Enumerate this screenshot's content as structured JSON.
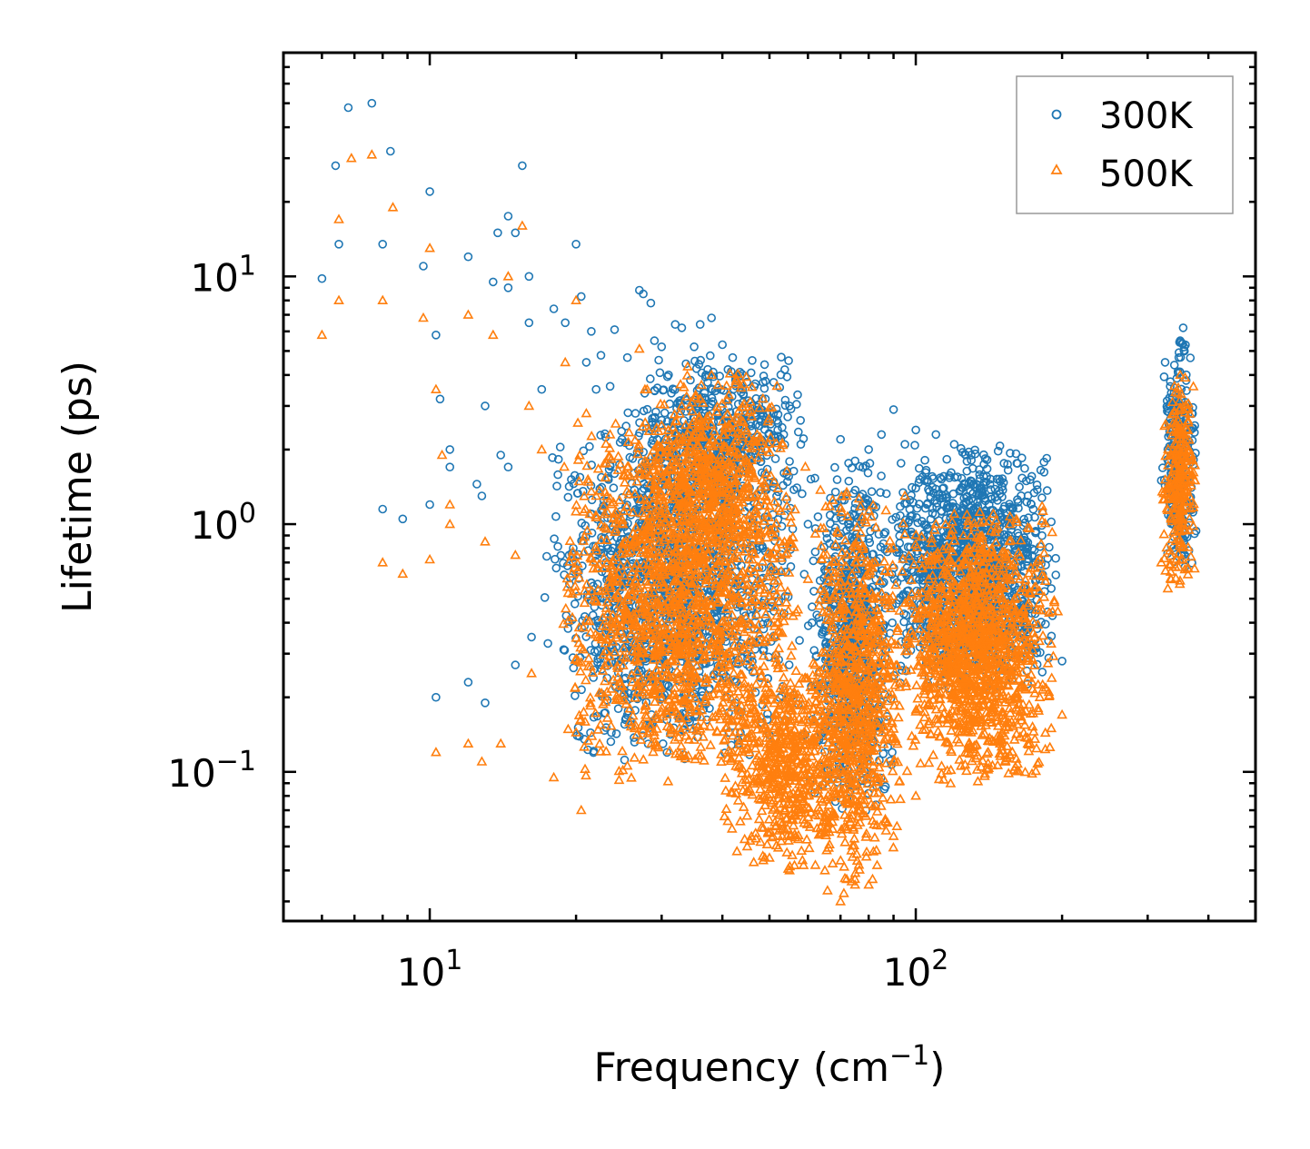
{
  "chart_data": {
    "type": "scatter",
    "title": "",
    "xlabel": "Frequency (cm",
    "xlabel_sup": "−1",
    "xlabel_end": ")",
    "ylabel": "Lifetime (ps)",
    "xscale": "log",
    "yscale": "log",
    "xlim": [
      5,
      500
    ],
    "ylim": [
      0.025,
      80
    ],
    "xticks": [
      {
        "value": 10,
        "base": "10",
        "exp": "1"
      },
      {
        "value": 100,
        "base": "10",
        "exp": "2"
      }
    ],
    "yticks": [
      {
        "value": 0.1,
        "base": "10",
        "exp": "−1"
      },
      {
        "value": 1,
        "base": "10",
        "exp": "0"
      },
      {
        "value": 10,
        "base": "10",
        "exp": "1"
      }
    ],
    "grid": false,
    "legend_position": "top-right",
    "series": [
      {
        "name": "300K",
        "marker": "circle",
        "color": "#1f77b4",
        "points": [
          [
            6.0,
            9.8
          ],
          [
            6.4,
            28
          ],
          [
            6.5,
            13.5
          ],
          [
            6.8,
            48
          ],
          [
            7.6,
            50
          ],
          [
            8.0,
            13.5
          ],
          [
            8.3,
            32
          ],
          [
            8.0,
            1.15
          ],
          [
            8.8,
            1.05
          ],
          [
            9.7,
            11
          ],
          [
            10.0,
            22
          ],
          [
            10.0,
            1.2
          ],
          [
            10.3,
            5.8
          ],
          [
            10.5,
            3.2
          ],
          [
            10.3,
            0.2
          ],
          [
            11.0,
            2.0
          ],
          [
            11.0,
            1.7
          ],
          [
            12.0,
            12
          ],
          [
            12.0,
            0.23
          ],
          [
            12.5,
            1.45
          ],
          [
            12.8,
            1.3
          ],
          [
            13.0,
            0.19
          ],
          [
            13.0,
            3.0
          ],
          [
            13.5,
            9.5
          ],
          [
            13.8,
            15
          ],
          [
            14.0,
            1.9
          ],
          [
            14.5,
            17.5
          ],
          [
            14.5,
            9.0
          ],
          [
            14.5,
            1.7
          ],
          [
            15.0,
            15
          ],
          [
            15.0,
            0.27
          ],
          [
            15.5,
            28
          ],
          [
            16.0,
            10
          ],
          [
            16.0,
            6.5
          ],
          [
            16.2,
            0.35
          ],
          [
            17.0,
            3.5
          ],
          [
            17.5,
            0.33
          ],
          [
            18.0,
            7.4
          ],
          [
            19.0,
            6.5
          ],
          [
            20.0,
            13.5
          ],
          [
            20.5,
            8.3
          ],
          [
            21.0,
            4.5
          ],
          [
            21.5,
            6.0
          ],
          [
            22.0,
            3.5
          ],
          [
            22.5,
            4.8
          ],
          [
            23.5,
            3.6
          ],
          [
            24.0,
            6.1
          ],
          [
            25.5,
            4.7
          ],
          [
            26.5,
            2.8
          ],
          [
            27.0,
            8.8
          ],
          [
            27.5,
            8.5
          ],
          [
            28.5,
            7.8
          ],
          [
            29.0,
            5.5
          ],
          [
            30.0,
            5.2
          ],
          [
            31.0,
            4.0
          ],
          [
            32.0,
            6.4
          ],
          [
            33.0,
            6.2
          ],
          [
            35.0,
            5.2
          ],
          [
            36.0,
            6.4
          ],
          [
            37.0,
            4.0
          ],
          [
            38.0,
            6.8
          ],
          [
            40.0,
            5.3
          ],
          [
            42.0,
            4.7
          ],
          [
            44.0,
            3.5
          ],
          [
            46.0,
            3.0
          ],
          [
            48.0,
            2.6
          ],
          [
            52.0,
            2.4
          ],
          [
            55.0,
            3.0
          ],
          [
            58.0,
            2.1
          ],
          [
            60.0,
            1.0
          ],
          [
            65.0,
            0.5
          ],
          [
            70.0,
            2.2
          ],
          [
            75.0,
            1.8
          ],
          [
            80.0,
            2.0
          ],
          [
            85.0,
            2.3
          ],
          [
            90.0,
            2.9
          ],
          [
            95.0,
            2.1
          ],
          [
            100.0,
            2.4
          ],
          [
            110.0,
            2.3
          ],
          [
            120.0,
            2.1
          ],
          [
            130.0,
            1.9
          ],
          [
            140.0,
            1.0
          ],
          [
            150.0,
            0.7
          ],
          [
            160.0,
            0.8
          ],
          [
            170.0,
            0.75
          ],
          [
            180.0,
            0.6
          ],
          [
            190.0,
            0.55
          ],
          [
            200.0,
            0.28
          ],
          [
            320.0,
            1.5
          ],
          [
            330.0,
            2.0
          ],
          [
            340.0,
            3.0
          ],
          [
            350.0,
            5.5
          ],
          [
            355.0,
            6.2
          ],
          [
            360.0,
            3.8
          ],
          [
            370.0,
            2.8
          ],
          [
            375.0,
            2.5
          ]
        ],
        "clusters": [
          {
            "x": [
              17,
              60
            ],
            "y": [
              0.1,
              3.0
            ],
            "n": 1400
          },
          {
            "x": [
              26,
              60
            ],
            "y": [
              1.0,
              5.0
            ],
            "n": 500
          },
          {
            "x": [
              60,
              90
            ],
            "y": [
              0.06,
              2.0
            ],
            "n": 700
          },
          {
            "x": [
              85,
              200
            ],
            "y": [
              0.2,
              2.2
            ],
            "n": 1300
          },
          {
            "x": [
              320,
              380
            ],
            "y": [
              0.6,
              6.0
            ],
            "n": 260
          }
        ]
      },
      {
        "name": "500K",
        "marker": "triangle",
        "color": "#ff7f0e",
        "points": [
          [
            6.0,
            5.8
          ],
          [
            6.5,
            17
          ],
          [
            6.5,
            8.0
          ],
          [
            6.9,
            30
          ],
          [
            7.6,
            31
          ],
          [
            8.0,
            8.0
          ],
          [
            8.0,
            0.7
          ],
          [
            8.4,
            19
          ],
          [
            8.8,
            0.63
          ],
          [
            9.7,
            6.8
          ],
          [
            10.0,
            13
          ],
          [
            10.0,
            0.72
          ],
          [
            10.3,
            3.5
          ],
          [
            10.3,
            0.12
          ],
          [
            10.6,
            1.9
          ],
          [
            11.0,
            1.2
          ],
          [
            11.0,
            1.0
          ],
          [
            12.0,
            7.0
          ],
          [
            12.0,
            0.13
          ],
          [
            12.8,
            0.11
          ],
          [
            13.0,
            0.85
          ],
          [
            13.5,
            5.8
          ],
          [
            14.0,
            0.13
          ],
          [
            14.5,
            10
          ],
          [
            15.0,
            0.75
          ],
          [
            15.5,
            16
          ],
          [
            16.0,
            3.0
          ],
          [
            16.2,
            0.25
          ],
          [
            17.0,
            2.0
          ],
          [
            18.0,
            0.095
          ],
          [
            19.0,
            4.5
          ],
          [
            20.0,
            8.0
          ],
          [
            20.5,
            0.07
          ],
          [
            21.0,
            2.8
          ],
          [
            22.0,
            1.3
          ],
          [
            23.5,
            2.3
          ],
          [
            25.0,
            1.0
          ],
          [
            27.0,
            5.1
          ],
          [
            28.0,
            3.5
          ],
          [
            30.0,
            2.5
          ],
          [
            33.0,
            3.0
          ],
          [
            36.0,
            3.2
          ],
          [
            38.0,
            4.0
          ],
          [
            40.0,
            2.6
          ],
          [
            45.0,
            0.05
          ],
          [
            50.0,
            0.045
          ],
          [
            55.0,
            0.04
          ],
          [
            60.0,
            0.6
          ],
          [
            65.0,
            0.04
          ],
          [
            70.0,
            0.03
          ],
          [
            72.0,
            1.3
          ],
          [
            75.0,
            0.035
          ],
          [
            80.0,
            0.035
          ],
          [
            90.0,
            0.055
          ],
          [
            95.0,
            1.3
          ],
          [
            100.0,
            0.08
          ],
          [
            110.0,
            1.0
          ],
          [
            120.0,
            1.1
          ],
          [
            130.0,
            0.9
          ],
          [
            140.0,
            0.3
          ],
          [
            150.0,
            0.4
          ],
          [
            160.0,
            0.35
          ],
          [
            180.0,
            0.2
          ],
          [
            190.0,
            0.15
          ],
          [
            200.0,
            0.17
          ],
          [
            320.0,
            0.7
          ],
          [
            330.0,
            0.55
          ],
          [
            340.0,
            2.8
          ],
          [
            350.0,
            4.0
          ],
          [
            360.0,
            2.2
          ],
          [
            375.0,
            1.5
          ]
        ],
        "clusters": [
          {
            "x": [
              18,
              60
            ],
            "y": [
              0.08,
              3.0
            ],
            "n": 1500
          },
          {
            "x": [
              26,
              55
            ],
            "y": [
              0.5,
              4.5
            ],
            "n": 500
          },
          {
            "x": [
              40,
              75
            ],
            "y": [
              0.04,
              0.3
            ],
            "n": 600
          },
          {
            "x": [
              60,
              95
            ],
            "y": [
              0.03,
              1.5
            ],
            "n": 800
          },
          {
            "x": [
              90,
              200
            ],
            "y": [
              0.08,
              1.2
            ],
            "n": 1300
          },
          {
            "x": [
              320,
              380
            ],
            "y": [
              0.5,
              4.0
            ],
            "n": 260
          }
        ]
      }
    ]
  }
}
